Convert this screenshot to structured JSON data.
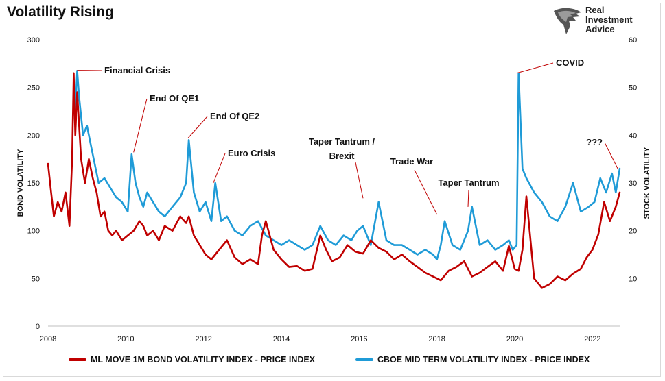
{
  "title": "Volatility Rising",
  "logo": {
    "line1": "Real",
    "line2": "Investment",
    "line3": "Advice"
  },
  "colors": {
    "bond": "#c00000",
    "stock": "#1f9bd7",
    "text": "#111111",
    "annotation": "#c00000"
  },
  "chart_data": {
    "type": "line",
    "title": "Volatility Rising",
    "xlabel": "",
    "ylabel": "BOND VOLATILITY",
    "y2label": "STOCK VOLATILITY",
    "xlim": [
      2008,
      2022.7
    ],
    "ylim": [
      0,
      300
    ],
    "y2lim": [
      0,
      60
    ],
    "x_ticks": [
      "2008",
      "2010",
      "2012",
      "2014",
      "2016",
      "2018",
      "2020",
      "2022"
    ],
    "y_ticks": [
      "0",
      "50",
      "100",
      "150",
      "200",
      "250",
      "300"
    ],
    "y2_ticks": [
      "10",
      "20",
      "30",
      "40",
      "50",
      "60"
    ],
    "grid": false,
    "legend_position": "bottom",
    "series": [
      {
        "name": "ML MOVE 1M BOND VOLATILITY INDEX - PRICE INDEX",
        "axis": "left",
        "x": [
          2008.0,
          2008.08,
          2008.15,
          2008.25,
          2008.35,
          2008.45,
          2008.55,
          2008.62,
          2008.66,
          2008.7,
          2008.75,
          2008.8,
          2008.85,
          2008.95,
          2009.05,
          2009.15,
          2009.25,
          2009.35,
          2009.45,
          2009.55,
          2009.65,
          2009.75,
          2009.9,
          2010.05,
          2010.2,
          2010.35,
          2010.45,
          2010.55,
          2010.7,
          2010.85,
          2011.0,
          2011.2,
          2011.4,
          2011.55,
          2011.62,
          2011.75,
          2011.9,
          2012.05,
          2012.2,
          2012.4,
          2012.6,
          2012.8,
          2013.0,
          2013.2,
          2013.4,
          2013.5,
          2013.6,
          2013.8,
          2014.0,
          2014.2,
          2014.4,
          2014.6,
          2014.8,
          2015.0,
          2015.15,
          2015.3,
          2015.5,
          2015.7,
          2015.9,
          2016.1,
          2016.3,
          2016.5,
          2016.7,
          2016.9,
          2017.1,
          2017.3,
          2017.5,
          2017.7,
          2017.9,
          2018.1,
          2018.3,
          2018.5,
          2018.7,
          2018.9,
          2019.1,
          2019.3,
          2019.5,
          2019.7,
          2019.85,
          2020.0,
          2020.1,
          2020.2,
          2020.3,
          2020.5,
          2020.7,
          2020.9,
          2021.1,
          2021.3,
          2021.5,
          2021.7,
          2021.85,
          2022.0,
          2022.15,
          2022.3,
          2022.45,
          2022.6,
          2022.7
        ],
        "values": [
          170,
          140,
          115,
          130,
          120,
          140,
          105,
          175,
          265,
          200,
          245,
          210,
          175,
          150,
          175,
          155,
          140,
          115,
          120,
          100,
          95,
          100,
          90,
          95,
          100,
          110,
          105,
          95,
          100,
          90,
          105,
          100,
          115,
          108,
          115,
          95,
          85,
          75,
          70,
          80,
          90,
          72,
          65,
          70,
          65,
          95,
          110,
          80,
          70,
          62,
          63,
          58,
          60,
          95,
          80,
          68,
          72,
          85,
          78,
          76,
          90,
          82,
          78,
          70,
          75,
          68,
          62,
          56,
          52,
          48,
          58,
          62,
          68,
          52,
          56,
          62,
          68,
          58,
          84,
          60,
          58,
          80,
          136,
          50,
          40,
          44,
          52,
          48,
          55,
          60,
          72,
          80,
          96,
          130,
          110,
          125,
          140
        ]
      },
      {
        "name": "CBOE MID TERM VOLATILITY INDEX - PRICE INDEX",
        "axis": "right",
        "x": [
          2008.0,
          2008.2,
          2008.4,
          2008.6,
          2008.7,
          2008.75,
          2008.8,
          2008.85,
          2008.9,
          2009.0,
          2009.1,
          2009.2,
          2009.3,
          2009.45,
          2009.6,
          2009.75,
          2009.9,
          2010.05,
          2010.15,
          2010.25,
          2010.35,
          2010.45,
          2010.55,
          2010.7,
          2010.85,
          2011.0,
          2011.2,
          2011.4,
          2011.55,
          2011.62,
          2011.75,
          2011.9,
          2012.05,
          2012.2,
          2012.3,
          2012.45,
          2012.6,
          2012.8,
          2013.0,
          2013.2,
          2013.4,
          2013.6,
          2013.8,
          2014.0,
          2014.2,
          2014.4,
          2014.6,
          2014.8,
          2015.0,
          2015.2,
          2015.4,
          2015.6,
          2015.8,
          2015.95,
          2016.1,
          2016.3,
          2016.5,
          2016.7,
          2016.9,
          2017.1,
          2017.3,
          2017.5,
          2017.7,
          2017.9,
          2018.0,
          2018.1,
          2018.2,
          2018.4,
          2018.6,
          2018.8,
          2018.9,
          2019.1,
          2019.3,
          2019.5,
          2019.7,
          2019.85,
          2019.95,
          2020.05,
          2020.1,
          2020.2,
          2020.3,
          2020.5,
          2020.7,
          2020.9,
          2021.1,
          2021.3,
          2021.5,
          2021.7,
          2021.9,
          2022.05,
          2022.2,
          2022.35,
          2022.5,
          2022.6,
          2022.7
        ],
        "values": [
          null,
          null,
          null,
          null,
          45,
          53.5,
          48,
          44,
          40,
          42,
          38,
          34,
          30,
          31,
          29,
          27,
          26,
          24,
          36,
          30,
          27,
          25,
          28,
          26,
          24,
          23,
          25,
          27,
          30,
          39,
          28,
          24,
          26,
          22,
          30,
          22,
          23,
          20,
          19,
          21,
          22,
          19,
          18,
          17,
          18,
          17,
          16,
          17,
          21,
          18,
          17,
          19,
          18,
          20,
          21,
          17,
          26,
          18,
          17,
          17,
          16,
          15,
          16,
          15,
          14,
          17,
          22,
          17,
          16,
          20,
          25,
          17,
          18,
          16,
          17,
          18,
          16,
          17,
          53,
          33,
          31,
          28,
          26,
          23,
          22,
          25,
          30,
          24,
          25,
          26,
          31,
          28,
          32,
          28,
          33
        ]
      }
    ],
    "annotations": [
      {
        "text": "Financial Crisis",
        "x": 2008.75,
        "y": 268
      },
      {
        "text": "End Of QE1",
        "x": 2010.2,
        "y": 182
      },
      {
        "text": "End Of QE2",
        "x": 2011.6,
        "y": 197
      },
      {
        "text": "Euro Crisis",
        "x": 2012.25,
        "y": 150
      },
      {
        "text": "Taper Tantrum / Brexit",
        "x": 2016.1,
        "y": 134
      },
      {
        "text": "Trade War",
        "x": 2018.0,
        "y": 117
      },
      {
        "text": "Taper Tantrum",
        "x": 2018.8,
        "y": 125
      },
      {
        "text": "COVID",
        "x": 2020.05,
        "y": 265
      },
      {
        "text": "???",
        "x": 2022.65,
        "y": 165
      }
    ]
  }
}
